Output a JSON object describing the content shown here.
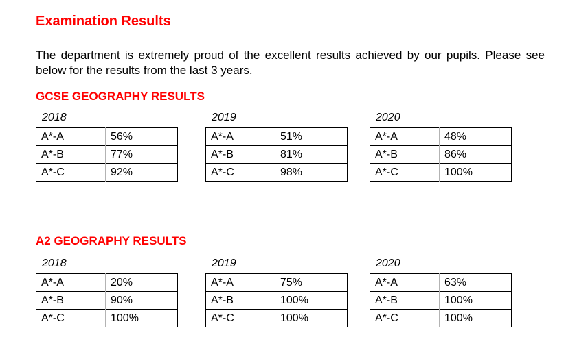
{
  "page": {
    "title": "Examination Results",
    "intro": "The department is extremely proud of the excellent results achieved by our pupils. Please see below for the results from the last 3 years."
  },
  "sections": [
    {
      "heading": "GCSE GEOGRAPHY RESULTS",
      "tables": [
        {
          "year": "2018",
          "rows": [
            [
              "A*-A",
              "56%"
            ],
            [
              "A*-B",
              "77%"
            ],
            [
              "A*-C",
              "92%"
            ]
          ]
        },
        {
          "year": "2019",
          "rows": [
            [
              "A*-A",
              "51%"
            ],
            [
              "A*-B",
              "81%"
            ],
            [
              "A*-C",
              "98%"
            ]
          ]
        },
        {
          "year": "2020",
          "rows": [
            [
              "A*-A",
              "48%"
            ],
            [
              "A*-B",
              "86%"
            ],
            [
              "A*-C",
              "100%"
            ]
          ]
        }
      ]
    },
    {
      "heading": "A2 GEOGRAPHY RESULTS",
      "tables": [
        {
          "year": "2018",
          "rows": [
            [
              "A*-A",
              "20%"
            ],
            [
              "A*-B",
              "90%"
            ],
            [
              "A*-C",
              "100%"
            ]
          ]
        },
        {
          "year": "2019",
          "rows": [
            [
              "A*-A",
              "75%"
            ],
            [
              "A*-B",
              "100%"
            ],
            [
              "A*-C",
              "100%"
            ]
          ]
        },
        {
          "year": "2020",
          "rows": [
            [
              "A*-A",
              "63%"
            ],
            [
              "A*-B",
              "100%"
            ],
            [
              "A*-C",
              "100%"
            ]
          ]
        }
      ]
    }
  ],
  "colors": {
    "accent_red": "#ff0000",
    "text_black": "#000000",
    "table_border": "#000000",
    "table_divider": "#b3b3b3"
  }
}
